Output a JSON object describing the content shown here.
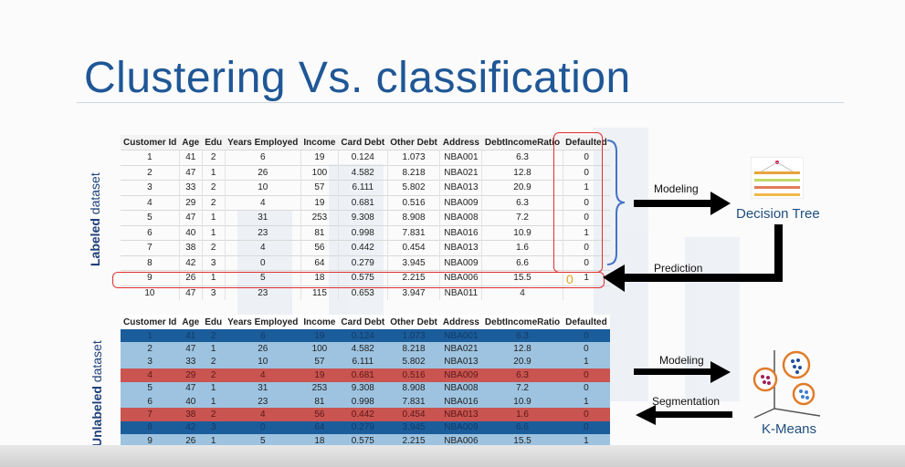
{
  "title": "Clustering Vs. classification",
  "labeled": {
    "side_label_bold": "Labeled",
    "side_label_rest": " dataset",
    "headers": [
      "Customer Id",
      "Age",
      "Edu",
      "Years Employed",
      "Income",
      "Card Debt",
      "Other Debt",
      "Address",
      "DebtIncomeRatio",
      "Defaulted"
    ],
    "rows": [
      [
        "1",
        "41",
        "2",
        "6",
        "19",
        "0.124",
        "1.073",
        "NBA001",
        "6.3",
        "0"
      ],
      [
        "2",
        "47",
        "1",
        "26",
        "100",
        "4.582",
        "8.218",
        "NBA021",
        "12.8",
        "0"
      ],
      [
        "3",
        "33",
        "2",
        "10",
        "57",
        "6.111",
        "5.802",
        "NBA013",
        "20.9",
        "1"
      ],
      [
        "4",
        "29",
        "2",
        "4",
        "19",
        "0.681",
        "0.516",
        "NBA009",
        "6.3",
        "0"
      ],
      [
        "5",
        "47",
        "1",
        "31",
        "253",
        "9.308",
        "8.908",
        "NBA008",
        "7.2",
        "0"
      ],
      [
        "6",
        "40",
        "1",
        "23",
        "81",
        "0.998",
        "7.831",
        "NBA016",
        "10.9",
        "1"
      ],
      [
        "7",
        "38",
        "2",
        "4",
        "56",
        "0.442",
        "0.454",
        "NBA013",
        "1.6",
        "0"
      ],
      [
        "8",
        "42",
        "3",
        "0",
        "64",
        "0.279",
        "3.945",
        "NBA009",
        "6.6",
        "0"
      ],
      [
        "9",
        "26",
        "1",
        "5",
        "18",
        "0.575",
        "2.215",
        "NBA006",
        "15.5",
        "1"
      ]
    ],
    "new_row": [
      "10",
      "47",
      "3",
      "23",
      "115",
      "0.653",
      "3.947",
      "NBA011",
      "4",
      ""
    ],
    "predicted_value": "0",
    "modeling_label": "Modeling",
    "prediction_label": "Prediction",
    "algorithm": "Decision Tree"
  },
  "unlabeled": {
    "side_label_bold": "Unlabeled",
    "side_label_rest": " dataset",
    "headers": [
      "Customer Id",
      "Age",
      "Edu",
      "Years Employed",
      "Income",
      "Card Debt",
      "Other Debt",
      "Address",
      "DebtIncomeRatio",
      "Defaulted"
    ],
    "rows": [
      {
        "cluster": "dark",
        "cells": [
          "1",
          "41",
          "2",
          "6",
          "19",
          "0.124",
          "1.073",
          "NBA001",
          "6.3",
          "0"
        ]
      },
      {
        "cluster": "light",
        "cells": [
          "2",
          "47",
          "1",
          "26",
          "100",
          "4.582",
          "8.218",
          "NBA021",
          "12.8",
          "0"
        ]
      },
      {
        "cluster": "light",
        "cells": [
          "3",
          "33",
          "2",
          "10",
          "57",
          "6.111",
          "5.802",
          "NBA013",
          "20.9",
          "1"
        ]
      },
      {
        "cluster": "red",
        "cells": [
          "4",
          "29",
          "2",
          "4",
          "19",
          "0.681",
          "0.516",
          "NBA009",
          "6.3",
          "0"
        ]
      },
      {
        "cluster": "light",
        "cells": [
          "5",
          "47",
          "1",
          "31",
          "253",
          "9.308",
          "8.908",
          "NBA008",
          "7.2",
          "0"
        ]
      },
      {
        "cluster": "light",
        "cells": [
          "6",
          "40",
          "1",
          "23",
          "81",
          "0.998",
          "7.831",
          "NBA016",
          "10.9",
          "1"
        ]
      },
      {
        "cluster": "red",
        "cells": [
          "7",
          "38",
          "2",
          "4",
          "56",
          "0.442",
          "0.454",
          "NBA013",
          "1.6",
          "0"
        ]
      },
      {
        "cluster": "dark",
        "cells": [
          "8",
          "42",
          "3",
          "0",
          "64",
          "0.279",
          "3.945",
          "NBA009",
          "6.6",
          "0"
        ]
      },
      {
        "cluster": "light",
        "cells": [
          "9",
          "26",
          "1",
          "5",
          "18",
          "0.575",
          "2.215",
          "NBA006",
          "15.5",
          "1"
        ]
      }
    ],
    "modeling_label": "Modeling",
    "segmentation_label": "Segmentation",
    "algorithm": "K-Means"
  },
  "colors": {
    "title": "#1f5796",
    "cluster_light": "#9dc3e0",
    "cluster_dark": "#1b5d9b",
    "cluster_red": "#c95450",
    "highlight_red": "#e03030",
    "predicted": "#e8a21a"
  },
  "icons": [
    "decision-tree-icon",
    "kmeans-clusters-icon",
    "right-arrow-icon",
    "left-arrow-icon",
    "brace-icon"
  ]
}
